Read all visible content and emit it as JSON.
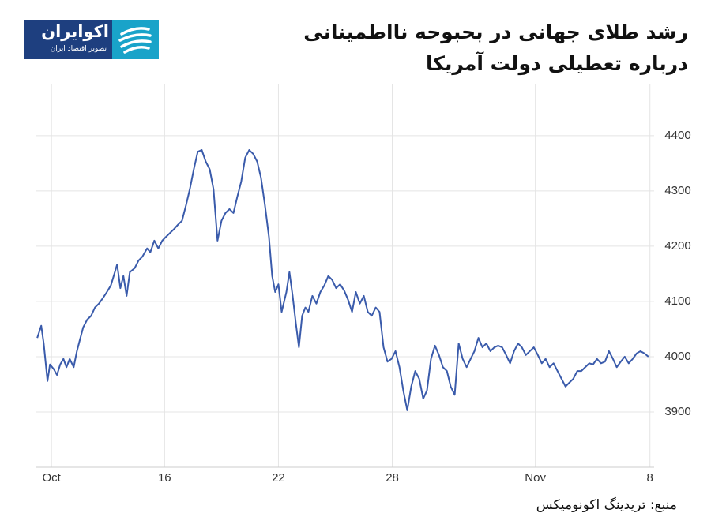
{
  "logo": {
    "name": "اکوایران",
    "tagline": "تصویر اقتصاد ایران"
  },
  "source": "منبع: تریدینگ اکونومیکس",
  "chart_data": {
    "type": "line",
    "title": [
      "رشد طلای جهانی در بحبوحه نااطمینانی",
      "درباره تعطیلی دولت آمریکا"
    ],
    "color": "#3a5bab",
    "grid": true,
    "xlim": [
      9.2,
      41.8
    ],
    "xticks": [
      {
        "value": 10.04,
        "label": "Oct"
      },
      16,
      22,
      28,
      {
        "value": 35.54,
        "label": "Nov"
      },
      {
        "value": 41.58,
        "label": "8"
      }
    ],
    "ylim": [
      3800,
      4494
    ],
    "yticks": [
      3900,
      4000,
      4100,
      4200,
      4300,
      4400
    ],
    "x": [
      9.29,
      9.5,
      9.63,
      9.83,
      9.96,
      10.17,
      10.33,
      10.5,
      10.67,
      10.83,
      11,
      11.21,
      11.38,
      11.54,
      11.71,
      11.92,
      12.13,
      12.33,
      12.54,
      12.75,
      12.96,
      13.17,
      13.38,
      13.5,
      13.67,
      13.83,
      14,
      14.17,
      14.42,
      14.63,
      14.83,
      15.08,
      15.25,
      15.46,
      15.67,
      15.88,
      16.08,
      16.29,
      16.5,
      16.71,
      16.92,
      17.13,
      17.33,
      17.54,
      17.75,
      17.96,
      18.17,
      18.38,
      18.58,
      18.79,
      19,
      19.21,
      19.42,
      19.63,
      19.83,
      20.04,
      20.25,
      20.46,
      20.67,
      20.88,
      21.08,
      21.29,
      21.5,
      21.67,
      21.83,
      22,
      22.17,
      22.42,
      22.58,
      22.75,
      22.92,
      23.08,
      23.25,
      23.42,
      23.58,
      23.79,
      24,
      24.21,
      24.42,
      24.63,
      24.83,
      25.04,
      25.25,
      25.46,
      25.67,
      25.88,
      26.08,
      26.29,
      26.5,
      26.71,
      26.92,
      27.13,
      27.33,
      27.54,
      27.75,
      27.96,
      28.17,
      28.38,
      28.58,
      28.79,
      29,
      29.21,
      29.42,
      29.63,
      29.83,
      30.04,
      30.25,
      30.46,
      30.67,
      30.88,
      31.08,
      31.29,
      31.5,
      31.71,
      31.92,
      32.13,
      32.33,
      32.54,
      32.75,
      32.96,
      33.17,
      33.38,
      33.58,
      33.79,
      34,
      34.21,
      34.42,
      34.63,
      34.83,
      35.04,
      35.25,
      35.46,
      35.67,
      35.88,
      36.08,
      36.29,
      36.5,
      36.71,
      36.92,
      37.13,
      37.33,
      37.54,
      37.75,
      37.96,
      38.17,
      38.38,
      38.58,
      38.79,
      39,
      39.21,
      39.42,
      39.63,
      39.83,
      40.04,
      40.25,
      40.46,
      40.67,
      40.88,
      41.08,
      41.29,
      41.5
    ],
    "values": [
      4034,
      4056,
      4024,
      3956,
      3986,
      3977,
      3967,
      3986,
      3996,
      3981,
      3996,
      3981,
      4010,
      4031,
      4053,
      4067,
      4074,
      4089,
      4096,
      4106,
      4117,
      4129,
      4153,
      4167,
      4124,
      4146,
      4110,
      4153,
      4160,
      4174,
      4181,
      4196,
      4189,
      4210,
      4196,
      4210,
      4217,
      4224,
      4231,
      4239,
      4246,
      4274,
      4303,
      4339,
      4371,
      4374,
      4353,
      4339,
      4303,
      4210,
      4246,
      4260,
      4267,
      4260,
      4289,
      4317,
      4360,
      4374,
      4367,
      4353,
      4324,
      4274,
      4217,
      4146,
      4117,
      4131,
      4081,
      4117,
      4153,
      4110,
      4060,
      4017,
      4074,
      4089,
      4081,
      4110,
      4096,
      4117,
      4129,
      4146,
      4139,
      4124,
      4131,
      4120,
      4103,
      4081,
      4117,
      4096,
      4110,
      4081,
      4074,
      4089,
      4081,
      4017,
      3991,
      3996,
      4010,
      3981,
      3939,
      3903,
      3946,
      3974,
      3960,
      3924,
      3939,
      3996,
      4020,
      4003,
      3981,
      3974,
      3946,
      3931,
      4024,
      3996,
      3981,
      3996,
      4010,
      4034,
      4017,
      4024,
      4010,
      4017,
      4020,
      4017,
      4003,
      3988,
      4010,
      4024,
      4017,
      4003,
      4010,
      4017,
      4003,
      3988,
      3996,
      3981,
      3988,
      3974,
      3960,
      3946,
      3953,
      3960,
      3974,
      3974,
      3981,
      3988,
      3986,
      3996,
      3988,
      3991,
      4010,
      3996,
      3981,
      3991,
      4000,
      3988,
      3996,
      4006,
      4010,
      4006,
      4000
    ]
  }
}
